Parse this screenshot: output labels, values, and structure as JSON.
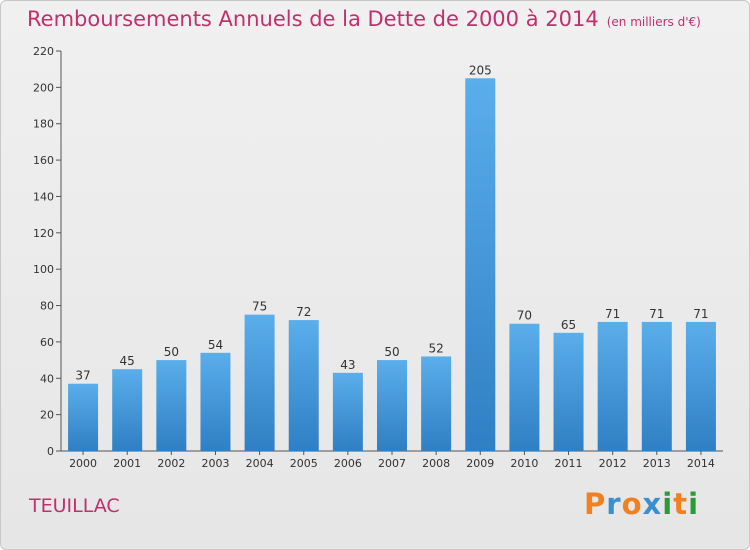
{
  "chart": {
    "title": "Remboursements Annuels de la Dette de 2000 à 2014",
    "unit": "(en milliers d'€)",
    "commune": "TEUILLAC"
  },
  "logo": {
    "letters": [
      "P",
      "r",
      "o",
      "x",
      "i",
      "t",
      "i"
    ],
    "colors": [
      "#f08020",
      "#3a8fd0",
      "#f08020",
      "#3a8fd0",
      "#2a9a3a",
      "#f08020",
      "#2a9a3a"
    ]
  },
  "chart_data": {
    "type": "bar",
    "title": "Remboursements Annuels de la Dette de 2000 à 2014",
    "subtitle": "(en milliers d'€)",
    "categories": [
      "2000",
      "2001",
      "2002",
      "2003",
      "2004",
      "2005",
      "2006",
      "2007",
      "2008",
      "2009",
      "2010",
      "2011",
      "2012",
      "2013",
      "2014"
    ],
    "values": [
      37,
      45,
      50,
      54,
      75,
      72,
      43,
      50,
      52,
      205,
      70,
      65,
      71,
      71,
      71
    ],
    "ylim": [
      0,
      220
    ],
    "yticks": [
      0,
      20,
      40,
      60,
      80,
      100,
      120,
      140,
      160,
      180,
      200,
      220
    ],
    "grid": false,
    "bar_color": "#4d9fe0"
  }
}
